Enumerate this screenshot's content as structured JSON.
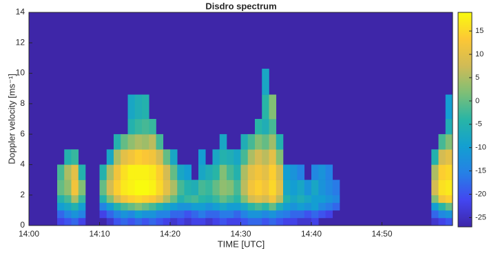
{
  "chart_data": {
    "type": "heatmap",
    "title": "Disdro spectrum",
    "xlabel": "TIME [UTC]",
    "ylabel": "Doppler velocity [ms⁻¹]",
    "colormap": "parula",
    "xlim": [
      "14:00",
      "15:00"
    ],
    "xticks": [
      "14:00",
      "14:10",
      "14:20",
      "14:30",
      "14:40",
      "14:50"
    ],
    "ylim": [
      0,
      14
    ],
    "yticks": [
      0,
      2,
      4,
      6,
      8,
      10,
      12,
      14
    ],
    "clim": [
      -27,
      19
    ],
    "cticks": [
      15,
      10,
      5,
      0,
      -5,
      -10,
      -15,
      -20,
      -25
    ],
    "y_bins": [
      0,
      0.5,
      1,
      1.5,
      2,
      3,
      4,
      5,
      6,
      7,
      8.6,
      10.3
    ],
    "x": [
      "14:04",
      "14:05",
      "14:06",
      "14:07",
      "14:10",
      "14:11",
      "14:12",
      "14:13",
      "14:14",
      "14:15",
      "14:16",
      "14:17",
      "14:18",
      "14:19",
      "14:20",
      "14:21",
      "14:22",
      "14:23",
      "14:24",
      "14:25",
      "14:26",
      "14:27",
      "14:28",
      "14:29",
      "14:30",
      "14:31",
      "14:32",
      "14:33",
      "14:34",
      "14:35",
      "14:36",
      "14:37",
      "14:38",
      "14:39",
      "14:40",
      "14:41",
      "14:42",
      "14:43",
      "14:57",
      "14:58",
      "14:59"
    ],
    "z": [
      [
        -22,
        -18,
        -10,
        -5,
        0,
        -2,
        null,
        null,
        null,
        null,
        null
      ],
      [
        -20,
        -15,
        -8,
        -2,
        3,
        5,
        -5,
        null,
        null,
        null,
        null
      ],
      [
        -18,
        -12,
        -5,
        5,
        12,
        10,
        -3,
        null,
        null,
        null,
        null
      ],
      [
        -22,
        -15,
        -10,
        -3,
        2,
        -5,
        null,
        null,
        null,
        null,
        null
      ],
      [
        null,
        -22,
        -15,
        -5,
        0,
        -5,
        null,
        null,
        null,
        null,
        null
      ],
      [
        -24,
        -18,
        -10,
        2,
        8,
        5,
        -8,
        null,
        null,
        null,
        null
      ],
      [
        -20,
        -15,
        -5,
        8,
        14,
        12,
        5,
        -5,
        null,
        null,
        null
      ],
      [
        -18,
        -12,
        -2,
        12,
        17,
        16,
        10,
        0,
        null,
        null,
        null
      ],
      [
        -20,
        -14,
        0,
        14,
        18,
        18,
        12,
        3,
        -5,
        -8,
        null
      ],
      [
        -18,
        -10,
        2,
        15,
        19,
        18,
        14,
        5,
        -3,
        -6,
        null
      ],
      [
        -20,
        -12,
        0,
        14,
        19,
        18,
        13,
        4,
        -2,
        -5,
        null
      ],
      [
        -18,
        -12,
        -2,
        13,
        18,
        17,
        12,
        6,
        -3,
        null,
        null
      ],
      [
        -20,
        -15,
        -5,
        10,
        15,
        14,
        8,
        -2,
        null,
        null,
        null
      ],
      [
        -22,
        -15,
        -8,
        5,
        10,
        8,
        0,
        null,
        null,
        null,
        null
      ],
      [
        -24,
        -18,
        -10,
        0,
        5,
        0,
        -8,
        null,
        null,
        null,
        null
      ],
      [
        -22,
        -18,
        -12,
        -5,
        -2,
        -8,
        null,
        null,
        null,
        null,
        null
      ],
      [
        -24,
        -20,
        -12,
        -3,
        -5,
        -10,
        null,
        null,
        null,
        null,
        null
      ],
      [
        -22,
        -18,
        -10,
        -2,
        -6,
        null,
        null,
        null,
        null,
        null,
        null
      ],
      [
        -22,
        -16,
        -10,
        -4,
        -2,
        -8,
        -10,
        null,
        null,
        null,
        null
      ],
      [
        -24,
        -18,
        -12,
        -5,
        -3,
        -6,
        null,
        null,
        null,
        null,
        null
      ],
      [
        -22,
        -18,
        -10,
        -3,
        0,
        -4,
        -8,
        null,
        null,
        null,
        null
      ],
      [
        -20,
        -16,
        -8,
        0,
        3,
        2,
        -5,
        -8,
        null,
        null,
        null
      ],
      [
        -22,
        -16,
        -10,
        -2,
        2,
        -2,
        -6,
        null,
        null,
        null,
        null
      ],
      [
        -22,
        -18,
        -10,
        -4,
        -2,
        -5,
        -8,
        null,
        null,
        null,
        null
      ],
      [
        -20,
        -15,
        -8,
        2,
        6,
        5,
        -2,
        -6,
        null,
        null,
        null
      ],
      [
        -18,
        -12,
        -4,
        8,
        12,
        10,
        5,
        -2,
        null,
        null,
        null
      ],
      [
        -18,
        -12,
        -2,
        10,
        14,
        12,
        8,
        2,
        -4,
        null,
        null
      ],
      [
        -20,
        -14,
        -4,
        8,
        12,
        10,
        6,
        0,
        -6,
        -4,
        -8
      ],
      [
        -18,
        -12,
        0,
        12,
        15,
        14,
        10,
        4,
        -2,
        2,
        null
      ],
      [
        -20,
        -15,
        -6,
        6,
        10,
        8,
        2,
        -5,
        null,
        null,
        null
      ],
      [
        -22,
        -16,
        -10,
        -5,
        -8,
        -10,
        null,
        null,
        null,
        null,
        null
      ],
      [
        -22,
        -18,
        -12,
        -8,
        -10,
        -12,
        null,
        null,
        null,
        null,
        null
      ],
      [
        -24,
        -18,
        -10,
        -6,
        -8,
        -15,
        null,
        null,
        null,
        null,
        null
      ],
      [
        -24,
        -20,
        -12,
        -8,
        -12,
        null,
        null,
        null,
        null,
        null,
        null
      ],
      [
        -22,
        -18,
        -10,
        -10,
        -8,
        -14,
        null,
        null,
        null,
        null,
        null
      ],
      [
        null,
        -20,
        -14,
        -10,
        -12,
        -12,
        null,
        null,
        null,
        null,
        null
      ],
      [
        null,
        -22,
        -16,
        -12,
        -14,
        -15,
        null,
        null,
        null,
        null,
        null
      ],
      [
        null,
        null,
        -18,
        -14,
        -16,
        null,
        null,
        null,
        null,
        null,
        null
      ],
      [
        -24,
        -18,
        -10,
        2,
        8,
        5,
        -5,
        null,
        null,
        null,
        null
      ],
      [
        -22,
        -14,
        -4,
        12,
        16,
        14,
        8,
        -2,
        null,
        null,
        null
      ],
      [
        -20,
        -12,
        0,
        14,
        17,
        15,
        10,
        2,
        -6,
        -10,
        null
      ]
    ]
  }
}
